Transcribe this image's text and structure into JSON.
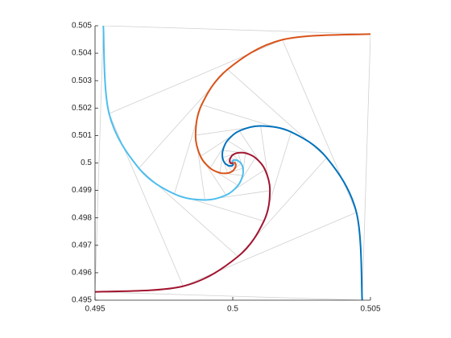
{
  "chart_data": {
    "type": "line",
    "xlim": [
      0.495,
      0.505
    ],
    "ylim": [
      0.495,
      0.505
    ],
    "xticks": [
      0.495,
      0.5,
      0.505
    ],
    "yticks": [
      0.495,
      0.496,
      0.497,
      0.498,
      0.499,
      0.5,
      0.501,
      0.502,
      0.503,
      0.504,
      0.505
    ],
    "connector_color": "#d0d0d0",
    "series": [
      {
        "color": "#0072bd",
        "x": [
          0.5047,
          0.50449,
          0.50341,
          0.50212,
          0.50101,
          0.50024,
          0.49981,
          0.49964,
          0.49963,
          0.4997,
          0.49981,
          0.4999,
          0.49997,
          0.50001,
          0.5
        ],
        "values": [
          0.495,
          0.4982,
          0.50019,
          0.50113,
          0.50135,
          0.50117,
          0.50082,
          0.50046,
          0.50019,
          0.50001,
          0.49992,
          0.49989,
          0.4999,
          0.49993,
          0.5
        ]
      },
      {
        "color": "#d95319",
        "x": [
          0.505,
          0.5018,
          0.49981,
          0.49887,
          0.49865,
          0.49883,
          0.49918,
          0.49954,
          0.49981,
          0.49999,
          0.50008,
          0.50011,
          0.5001,
          0.50007,
          0.5
        ],
        "values": [
          0.5047,
          0.50449,
          0.50341,
          0.50212,
          0.50101,
          0.50024,
          0.49981,
          0.49964,
          0.49963,
          0.4997,
          0.49981,
          0.4999,
          0.49997,
          0.50001,
          0.5
        ]
      },
      {
        "color": "#4dbeee",
        "x": [
          0.4953,
          0.49551,
          0.49659,
          0.49788,
          0.49899,
          0.49976,
          0.50019,
          0.50036,
          0.50037,
          0.5003,
          0.50019,
          0.5001,
          0.50003,
          0.49999,
          0.5
        ],
        "values": [
          0.505,
          0.5018,
          0.49981,
          0.49887,
          0.49865,
          0.49883,
          0.49918,
          0.49954,
          0.49981,
          0.49999,
          0.50008,
          0.50011,
          0.5001,
          0.50007,
          0.5
        ]
      },
      {
        "color": "#a2142f",
        "x": [
          0.495,
          0.4982,
          0.50019,
          0.50113,
          0.50135,
          0.50117,
          0.50082,
          0.50046,
          0.50019,
          0.50001,
          0.49992,
          0.49989,
          0.4999,
          0.49993,
          0.5
        ],
        "values": [
          0.4953,
          0.49551,
          0.49659,
          0.49788,
          0.49899,
          0.49976,
          0.50019,
          0.50036,
          0.50037,
          0.5003,
          0.50019,
          0.5001,
          0.50003,
          0.49999,
          0.5
        ]
      }
    ]
  }
}
